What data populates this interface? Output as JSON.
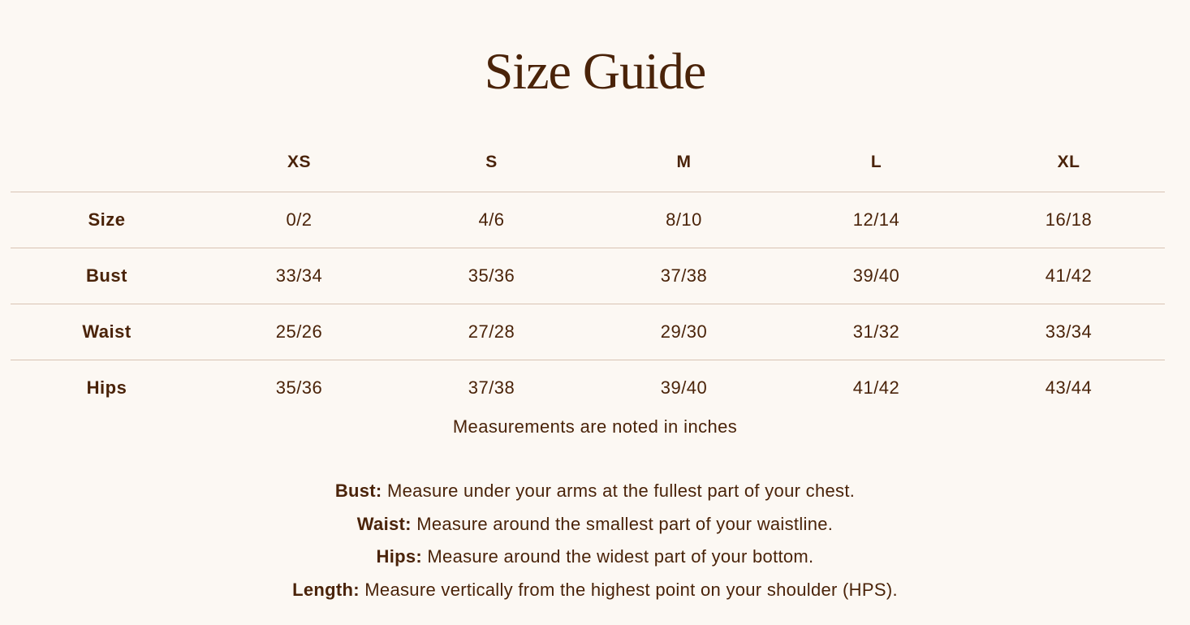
{
  "title": "Size Guide",
  "table": {
    "columns": [
      "",
      "XS",
      "S",
      "M",
      "L",
      "XL"
    ],
    "rows": [
      {
        "label": "Size",
        "values": [
          "0/2",
          "4/6",
          "8/10",
          "12/14",
          "16/18"
        ]
      },
      {
        "label": "Bust",
        "values": [
          "33/34",
          "35/36",
          "37/38",
          "39/40",
          "41/42"
        ]
      },
      {
        "label": "Waist",
        "values": [
          "25/26",
          "27/28",
          "29/30",
          "31/32",
          "33/34"
        ]
      },
      {
        "label": "Hips",
        "values": [
          "35/36",
          "37/38",
          "39/40",
          "41/42",
          "43/44"
        ]
      }
    ]
  },
  "note": "Measurements are noted in inches",
  "definitions": [
    {
      "term": "Bust:",
      "text": " Measure under your arms at the fullest part of your chest."
    },
    {
      "term": "Waist:",
      "text": " Measure around the smallest part of your waistline."
    },
    {
      "term": "Hips:",
      "text": " Measure around the widest part of your bottom."
    },
    {
      "term": "Length:",
      "text": " Measure vertically from the highest point on your shoulder (HPS)."
    }
  ],
  "colors": {
    "background": "#fcf8f3",
    "text": "#4a2309",
    "divider": "#d8c3b3"
  }
}
